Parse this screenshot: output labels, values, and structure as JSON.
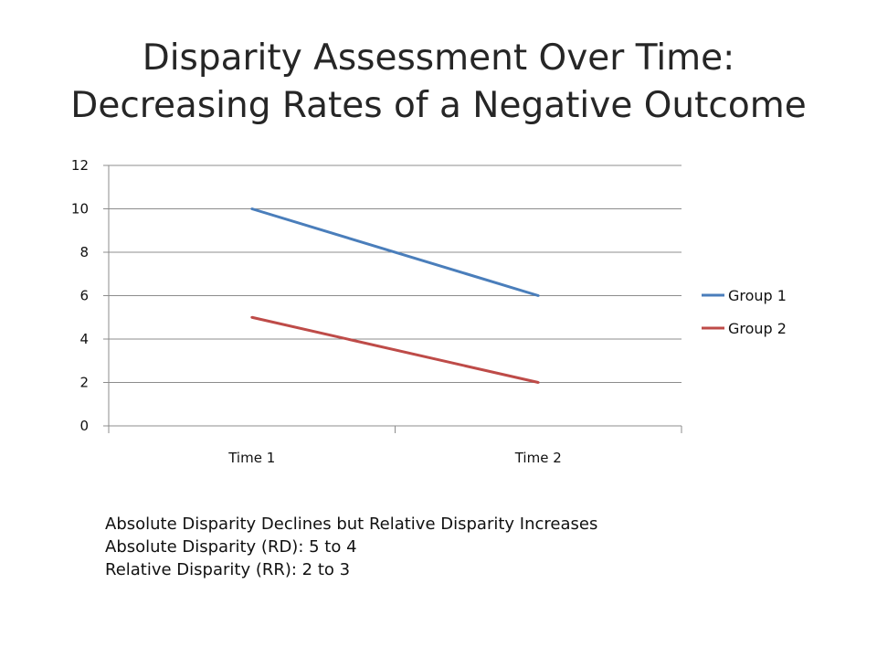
{
  "colors": {
    "group_1": "#4a7ebb",
    "group_2": "#be4b48",
    "grid": "#8c8c8c",
    "axis": "#8c8c8c"
  },
  "chart_data": {
    "type": "line",
    "title_lines": [
      "Disparity Assessment Over Time:",
      "Decreasing Rates of a Negative Outcome"
    ],
    "categories": [
      "Time 1",
      "Time 2"
    ],
    "series": [
      {
        "name": "Group 1",
        "values": [
          10,
          6
        ],
        "color": "#4a7ebb"
      },
      {
        "name": "Group 2",
        "values": [
          5,
          2
        ],
        "color": "#be4b48"
      }
    ],
    "ylim": [
      0,
      12
    ],
    "yticks": [
      0,
      2,
      4,
      6,
      8,
      10,
      12
    ],
    "grid": true,
    "legend": "right",
    "xlabel": "",
    "ylabel": ""
  },
  "notes": [
    "Absolute Disparity Declines but Relative Disparity Increases",
    "Absolute Disparity (RD): 5 to 4",
    "Relative Disparity (RR): 2 to 3"
  ]
}
